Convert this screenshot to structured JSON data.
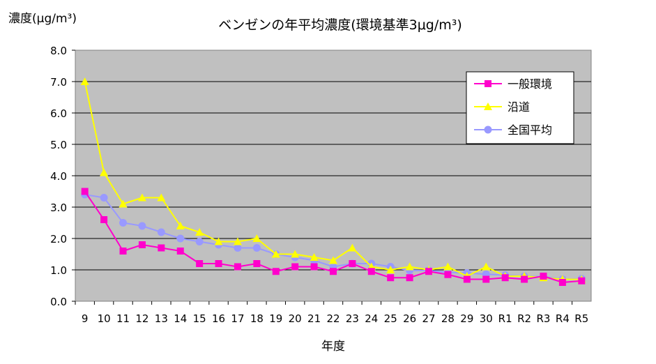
{
  "chart_data": {
    "type": "line",
    "title": "ベンゼンの年平均濃度(環境基準3μg/m³)",
    "ylabel": "濃度(μg/m³)",
    "xlabel": "年度",
    "ylim": [
      0,
      8
    ],
    "yticks": [
      "0.0",
      "1.0",
      "2.0",
      "3.0",
      "4.0",
      "5.0",
      "6.0",
      "7.0",
      "8.0"
    ],
    "grid": true,
    "legend_position": "top-right",
    "plot_background": "#c0c0c0",
    "categories": [
      "9",
      "10",
      "11",
      "12",
      "13",
      "14",
      "15",
      "16",
      "17",
      "18",
      "19",
      "20",
      "21",
      "22",
      "23",
      "24",
      "25",
      "26",
      "27",
      "28",
      "29",
      "30",
      "R1",
      "R2",
      "R3",
      "R4",
      "R5"
    ],
    "series": [
      {
        "name": "一般環境",
        "color": "#ff00cc",
        "marker": "square",
        "values": [
          3.5,
          2.6,
          1.6,
          1.8,
          1.7,
          1.6,
          1.2,
          1.2,
          1.1,
          1.2,
          0.95,
          1.1,
          1.1,
          0.95,
          1.2,
          0.95,
          0.75,
          0.75,
          0.95,
          0.85,
          0.7,
          0.7,
          0.75,
          0.7,
          0.8,
          0.6,
          0.65
        ]
      },
      {
        "name": "沿道",
        "color": "#ffff00",
        "marker": "triangle",
        "values": [
          7.0,
          4.1,
          3.1,
          3.3,
          3.3,
          2.4,
          2.2,
          1.9,
          1.9,
          2.0,
          1.5,
          1.5,
          1.4,
          1.3,
          1.7,
          1.1,
          1.0,
          1.1,
          1.0,
          1.1,
          0.8,
          1.1,
          0.8,
          0.8,
          0.75,
          0.7,
          0.7
        ]
      },
      {
        "name": "全国平均",
        "color": "#9999ff",
        "marker": "circle",
        "values": [
          3.4,
          3.3,
          2.5,
          2.4,
          2.2,
          2.0,
          1.9,
          1.8,
          1.7,
          1.7,
          1.5,
          1.4,
          1.3,
          1.1,
          1.2,
          1.2,
          1.1,
          0.98,
          0.98,
          0.92,
          0.9,
          0.86,
          0.83,
          0.8,
          0.78,
          0.7,
          0.72
        ]
      }
    ]
  }
}
